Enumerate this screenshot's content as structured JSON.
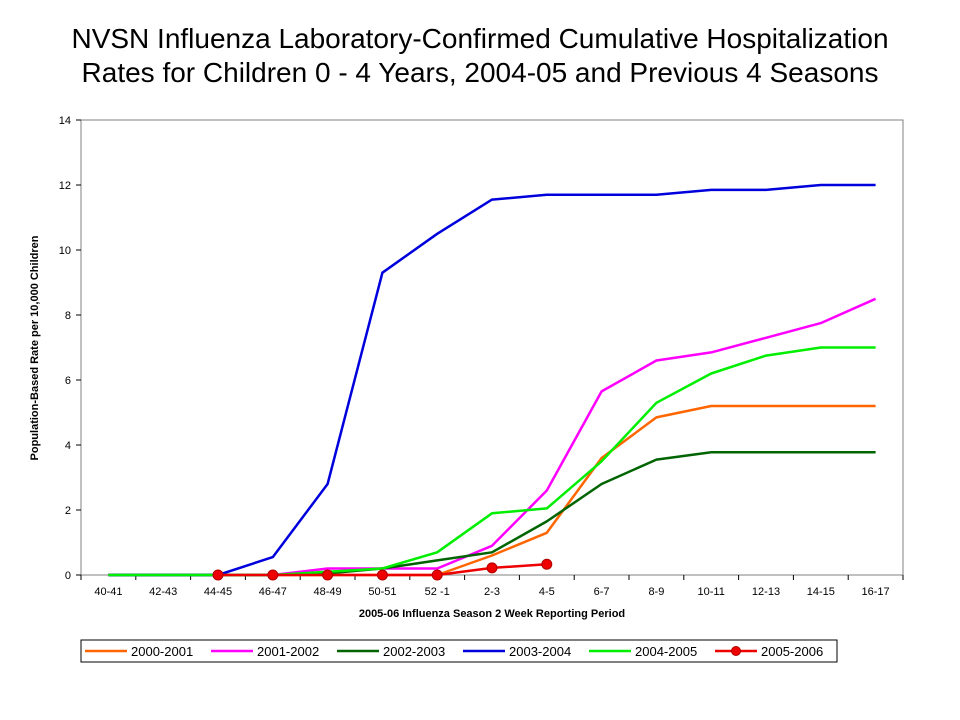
{
  "title": {
    "line1": "NVSN Influenza Laboratory-Confirmed Cumulative Hospitalization",
    "line2": "Rates for Children 0 - 4 Years, 2004-05 and Previous 4 Seasons"
  },
  "chart_data": {
    "type": "line",
    "xlabel": "2005-06 Influenza Season 2 Week Reporting Period",
    "ylabel": "Population-Based Rate per 10,000 Children",
    "ylim": [
      0,
      14
    ],
    "yticks": [
      0,
      2,
      4,
      6,
      8,
      10,
      12,
      14
    ],
    "grid": false,
    "legend_position": "bottom",
    "categories": [
      "40-41",
      "42-43",
      "44-45",
      "46-47",
      "48-49",
      "50-51",
      "52 -1",
      "2-3",
      "4-5",
      "6-7",
      "8-9",
      "10-11",
      "12-13",
      "14-15",
      "16-17"
    ],
    "series": [
      {
        "name": "2000-2001",
        "color": "#ff6600",
        "marker": "none",
        "values": [
          0,
          0,
          0,
          0,
          0,
          0,
          0,
          0.6,
          1.3,
          3.6,
          4.85,
          5.2,
          5.2,
          5.2,
          5.2
        ]
      },
      {
        "name": "2001-2002",
        "color": "#ff00ff",
        "marker": "none",
        "values": [
          0,
          0,
          0,
          0,
          0.2,
          0.2,
          0.2,
          0.9,
          2.6,
          5.65,
          6.6,
          6.85,
          7.3,
          7.75,
          8.5
        ]
      },
      {
        "name": "2002-2003",
        "color": "#006400",
        "marker": "none",
        "values": [
          0,
          0,
          0,
          0,
          0.05,
          0.2,
          0.45,
          0.7,
          1.65,
          2.8,
          3.55,
          3.78,
          3.78,
          3.78,
          3.78
        ]
      },
      {
        "name": "2003-2004",
        "color": "#0000dd",
        "marker": "none",
        "values": [
          0,
          0,
          0,
          0.55,
          2.8,
          9.3,
          10.5,
          11.55,
          11.7,
          11.7,
          11.7,
          11.85,
          11.85,
          12.0,
          12.0
        ]
      },
      {
        "name": "2004-2005",
        "color": "#00ee00",
        "marker": "none",
        "values": [
          0,
          0,
          0,
          0,
          0.1,
          0.2,
          0.7,
          1.9,
          2.05,
          3.5,
          5.3,
          6.2,
          6.75,
          7.0,
          7.0
        ]
      },
      {
        "name": "2005-2006",
        "color": "#ee0000",
        "marker": "circle",
        "values": [
          null,
          null,
          0,
          0,
          0,
          0,
          0,
          0.22,
          0.33,
          null,
          null,
          null,
          null,
          null,
          null
        ]
      }
    ]
  }
}
